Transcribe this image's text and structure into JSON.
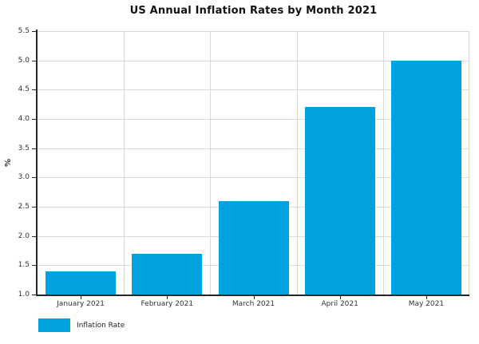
{
  "chart": {
    "title": "US Annual Inflation Rates by Month 2021"
  },
  "chart_data": {
    "type": "bar",
    "title": "US Annual Inflation Rates by Month 2021",
    "categories": [
      "January 2021",
      "February 2021",
      "March 2021",
      "April 2021",
      "May 2021"
    ],
    "series": [
      {
        "name": "Inflation Rate",
        "values": [
          1.4,
          1.7,
          2.6,
          4.2,
          5.0
        ]
      }
    ],
    "xlabel": "",
    "ylabel": "%",
    "ylim": [
      1.0,
      5.5
    ],
    "ytick_step": 0.5,
    "ytick_labels": [
      "1.0",
      "1.5",
      "2.0",
      "2.5",
      "3.0",
      "3.5",
      "4.0",
      "4.5",
      "5.0",
      "5.5"
    ],
    "grid": true,
    "legend_position": "bottom-left",
    "bar_color": "#00A3E0",
    "grid_color": "#D9D9D9",
    "axis_color": "#262626",
    "background_color": "#FFFFFF"
  }
}
